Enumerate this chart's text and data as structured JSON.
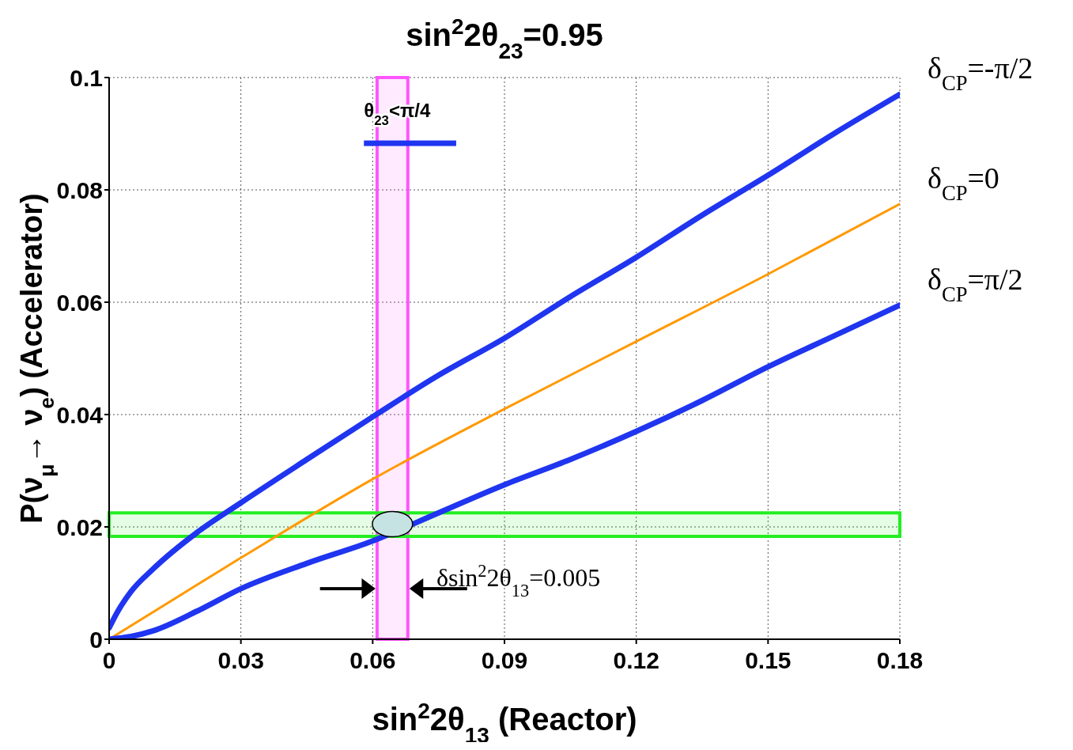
{
  "chart_data": {
    "type": "line",
    "title": "sin$^{2}$2θ$_{23}$=0.95",
    "xlabel": "sin$^{2}$2θ$_{13}$ (Reactor)",
    "ylabel": "P(ν$_{μ}$→ ν$_{e}$)  (Accelerator)",
    "xlim": [
      0,
      0.18
    ],
    "ylim": [
      0,
      0.1
    ],
    "xticks": [
      0,
      0.03,
      0.06,
      0.09,
      0.12,
      0.15,
      0.18
    ],
    "yticks": [
      0,
      0.02,
      0.04,
      0.06,
      0.08,
      0.1
    ],
    "grid": true,
    "line_style": "solid",
    "marker": "none",
    "series": [
      {
        "name": "δ$_{CP}$=-π/2",
        "color": "#1f35f0",
        "x": [
          0,
          0.002,
          0.005,
          0.01,
          0.02,
          0.03,
          0.045,
          0.06,
          0.075,
          0.09,
          0.105,
          0.12,
          0.135,
          0.15,
          0.165,
          0.18
        ],
        "values": [
          0.002,
          0.005,
          0.0085,
          0.0125,
          0.019,
          0.0243,
          0.032,
          0.0396,
          0.047,
          0.0536,
          0.061,
          0.068,
          0.0755,
          0.0826,
          0.09,
          0.097
        ]
      },
      {
        "name": "δ$_{CP}$=0",
        "color": "#ff9900",
        "x": [
          0,
          0.03,
          0.06,
          0.09,
          0.12,
          0.15,
          0.18
        ],
        "values": [
          0,
          0.0145,
          0.0285,
          0.041,
          0.053,
          0.065,
          0.0775
        ]
      },
      {
        "name": "δ$_{CP}$=π/2",
        "color": "#1f35f0",
        "x": [
          0,
          0.005,
          0.01,
          0.02,
          0.03,
          0.045,
          0.06,
          0.075,
          0.09,
          0.105,
          0.12,
          0.135,
          0.15,
          0.165,
          0.18
        ],
        "values": [
          0,
          0.0005,
          0.0015,
          0.005,
          0.009,
          0.0135,
          0.0175,
          0.0225,
          0.0275,
          0.032,
          0.037,
          0.0425,
          0.0485,
          0.054,
          0.0595
        ]
      }
    ],
    "bands": [
      {
        "axis": "x",
        "from": 0.061,
        "to": 0.068,
        "color": "#ff55ff"
      },
      {
        "axis": "y",
        "from": 0.0183,
        "to": 0.0225,
        "color": "#22ee22"
      }
    ],
    "annotations": [
      "θ$_{23}$<π/4",
      "δsin$^{2}$2θ$_{13}$=0.005"
    ]
  }
}
